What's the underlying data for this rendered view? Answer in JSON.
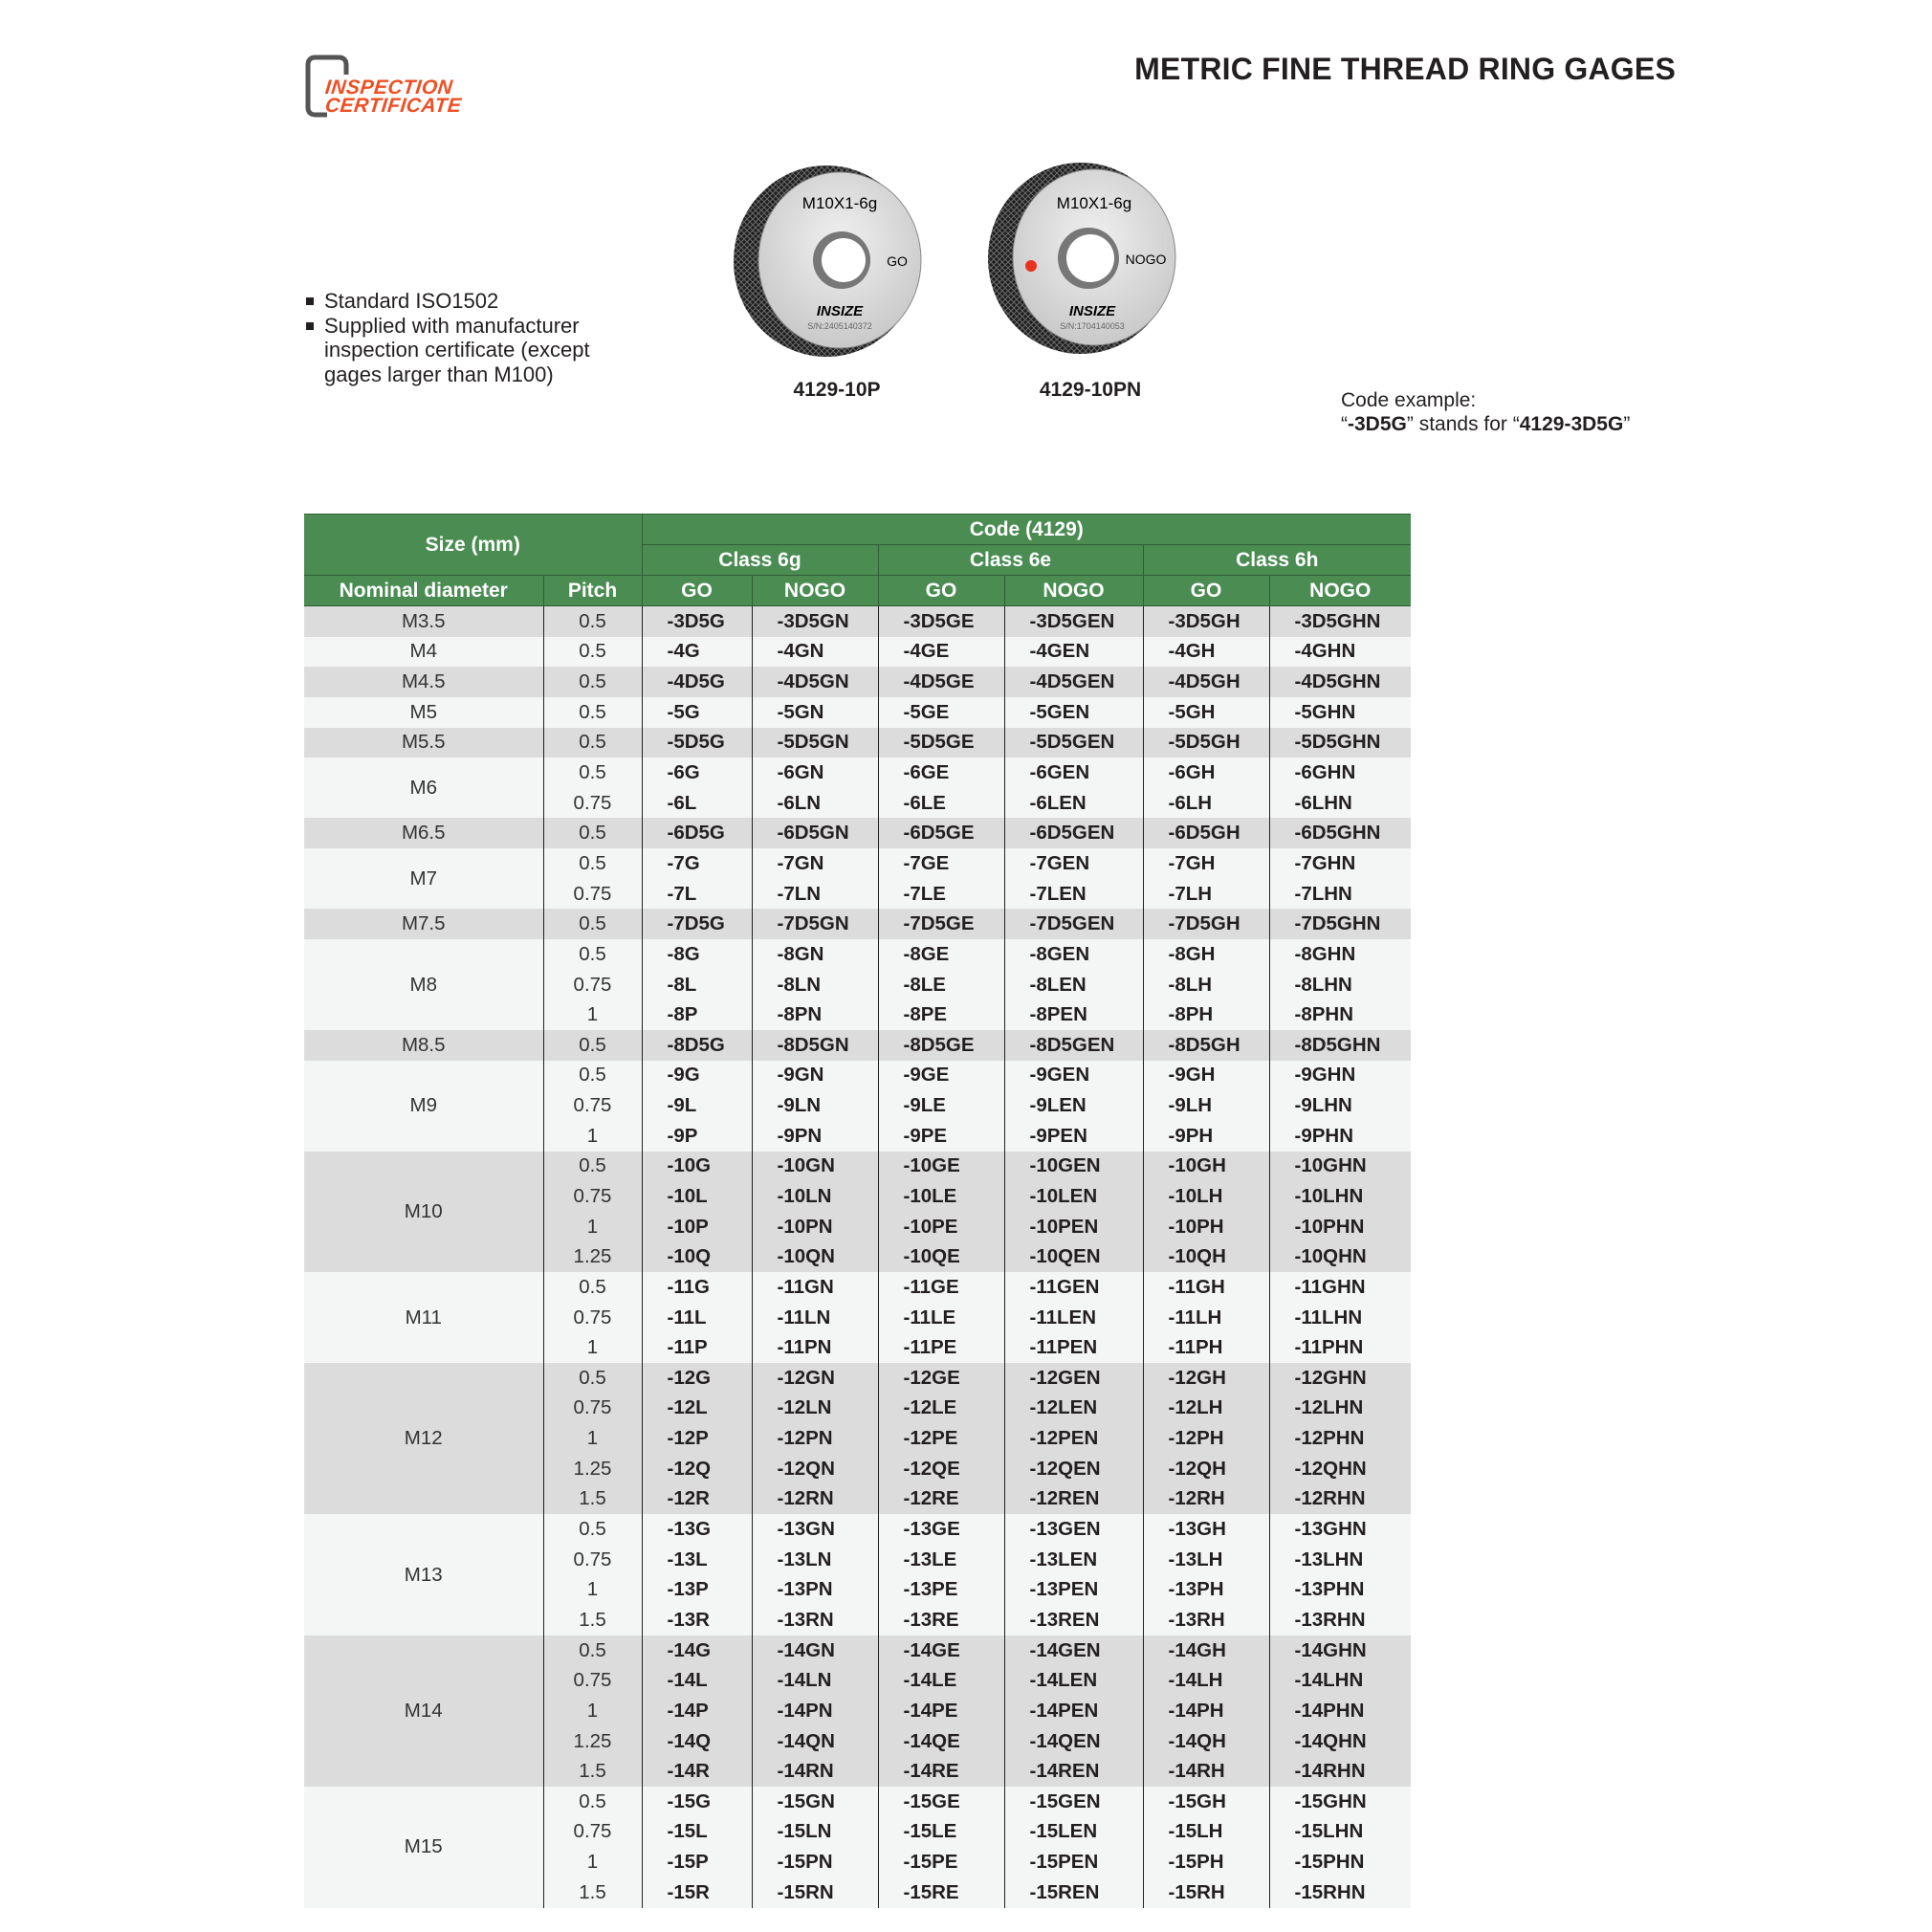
{
  "logo": {
    "line1": "INSPECTION",
    "line2": "CERTIFICATE",
    "color": "#f04e23"
  },
  "title": "METRIC FINE THREAD RING GAGES",
  "features": [
    "Standard ISO1502",
    "Supplied with manufacturer inspection certificate (except gages larger than M100)"
  ],
  "gages": [
    {
      "code": "4129-10P",
      "marking": "M10X1-6g",
      "type": "GO",
      "brand": "INSIZE",
      "serial": "S/N:2405140372",
      "red_dot": false
    },
    {
      "code": "4129-10PN",
      "marking": "M10X1-6g",
      "type": "NOGO",
      "brand": "INSIZE",
      "serial": "S/N:1704140053",
      "red_dot": true
    }
  ],
  "code_example": {
    "label": "Code example:",
    "short": "-3D5G",
    "middle": " stands for ",
    "full": "4129-3D5G"
  },
  "table": {
    "header_color": "#4a8c52",
    "size_header": "Size (mm)",
    "code_header": "Code (4129)",
    "classes": [
      "Class 6g",
      "Class 6e",
      "Class 6h"
    ],
    "columns": [
      "Nominal diameter",
      "Pitch",
      "GO",
      "NOGO",
      "GO",
      "NOGO",
      "GO",
      "NOGO"
    ],
    "groups": [
      {
        "size": "M3.5",
        "rows": [
          [
            "0.5",
            "-3D5G",
            "-3D5GN",
            "-3D5GE",
            "-3D5GEN",
            "-3D5GH",
            "-3D5GHN"
          ]
        ]
      },
      {
        "size": "M4",
        "rows": [
          [
            "0.5",
            "-4G",
            "-4GN",
            "-4GE",
            "-4GEN",
            "-4GH",
            "-4GHN"
          ]
        ]
      },
      {
        "size": "M4.5",
        "rows": [
          [
            "0.5",
            "-4D5G",
            "-4D5GN",
            "-4D5GE",
            "-4D5GEN",
            "-4D5GH",
            "-4D5GHN"
          ]
        ]
      },
      {
        "size": "M5",
        "rows": [
          [
            "0.5",
            "-5G",
            "-5GN",
            "-5GE",
            "-5GEN",
            "-5GH",
            "-5GHN"
          ]
        ]
      },
      {
        "size": "M5.5",
        "rows": [
          [
            "0.5",
            "-5D5G",
            "-5D5GN",
            "-5D5GE",
            "-5D5GEN",
            "-5D5GH",
            "-5D5GHN"
          ]
        ]
      },
      {
        "size": "M6",
        "rows": [
          [
            "0.5",
            "-6G",
            "-6GN",
            "-6GE",
            "-6GEN",
            "-6GH",
            "-6GHN"
          ],
          [
            "0.75",
            "-6L",
            "-6LN",
            "-6LE",
            "-6LEN",
            "-6LH",
            "-6LHN"
          ]
        ]
      },
      {
        "size": "M6.5",
        "rows": [
          [
            "0.5",
            "-6D5G",
            "-6D5GN",
            "-6D5GE",
            "-6D5GEN",
            "-6D5GH",
            "-6D5GHN"
          ]
        ]
      },
      {
        "size": "M7",
        "rows": [
          [
            "0.5",
            "-7G",
            "-7GN",
            "-7GE",
            "-7GEN",
            "-7GH",
            "-7GHN"
          ],
          [
            "0.75",
            "-7L",
            "-7LN",
            "-7LE",
            "-7LEN",
            "-7LH",
            "-7LHN"
          ]
        ]
      },
      {
        "size": "M7.5",
        "rows": [
          [
            "0.5",
            "-7D5G",
            "-7D5GN",
            "-7D5GE",
            "-7D5GEN",
            "-7D5GH",
            "-7D5GHN"
          ]
        ]
      },
      {
        "size": "M8",
        "rows": [
          [
            "0.5",
            "-8G",
            "-8GN",
            "-8GE",
            "-8GEN",
            "-8GH",
            "-8GHN"
          ],
          [
            "0.75",
            "-8L",
            "-8LN",
            "-8LE",
            "-8LEN",
            "-8LH",
            "-8LHN"
          ],
          [
            "1",
            "-8P",
            "-8PN",
            "-8PE",
            "-8PEN",
            "-8PH",
            "-8PHN"
          ]
        ]
      },
      {
        "size": "M8.5",
        "rows": [
          [
            "0.5",
            "-8D5G",
            "-8D5GN",
            "-8D5GE",
            "-8D5GEN",
            "-8D5GH",
            "-8D5GHN"
          ]
        ]
      },
      {
        "size": "M9",
        "rows": [
          [
            "0.5",
            "-9G",
            "-9GN",
            "-9GE",
            "-9GEN",
            "-9GH",
            "-9GHN"
          ],
          [
            "0.75",
            "-9L",
            "-9LN",
            "-9LE",
            "-9LEN",
            "-9LH",
            "-9LHN"
          ],
          [
            "1",
            "-9P",
            "-9PN",
            "-9PE",
            "-9PEN",
            "-9PH",
            "-9PHN"
          ]
        ]
      },
      {
        "size": "M10",
        "rows": [
          [
            "0.5",
            "-10G",
            "-10GN",
            "-10GE",
            "-10GEN",
            "-10GH",
            "-10GHN"
          ],
          [
            "0.75",
            "-10L",
            "-10LN",
            "-10LE",
            "-10LEN",
            "-10LH",
            "-10LHN"
          ],
          [
            "1",
            "-10P",
            "-10PN",
            "-10PE",
            "-10PEN",
            "-10PH",
            "-10PHN"
          ],
          [
            "1.25",
            "-10Q",
            "-10QN",
            "-10QE",
            "-10QEN",
            "-10QH",
            "-10QHN"
          ]
        ]
      },
      {
        "size": "M11",
        "rows": [
          [
            "0.5",
            "-11G",
            "-11GN",
            "-11GE",
            "-11GEN",
            "-11GH",
            "-11GHN"
          ],
          [
            "0.75",
            "-11L",
            "-11LN",
            "-11LE",
            "-11LEN",
            "-11LH",
            "-11LHN"
          ],
          [
            "1",
            "-11P",
            "-11PN",
            "-11PE",
            "-11PEN",
            "-11PH",
            "-11PHN"
          ]
        ]
      },
      {
        "size": "M12",
        "rows": [
          [
            "0.5",
            "-12G",
            "-12GN",
            "-12GE",
            "-12GEN",
            "-12GH",
            "-12GHN"
          ],
          [
            "0.75",
            "-12L",
            "-12LN",
            "-12LE",
            "-12LEN",
            "-12LH",
            "-12LHN"
          ],
          [
            "1",
            "-12P",
            "-12PN",
            "-12PE",
            "-12PEN",
            "-12PH",
            "-12PHN"
          ],
          [
            "1.25",
            "-12Q",
            "-12QN",
            "-12QE",
            "-12QEN",
            "-12QH",
            "-12QHN"
          ],
          [
            "1.5",
            "-12R",
            "-12RN",
            "-12RE",
            "-12REN",
            "-12RH",
            "-12RHN"
          ]
        ]
      },
      {
        "size": "M13",
        "rows": [
          [
            "0.5",
            "-13G",
            "-13GN",
            "-13GE",
            "-13GEN",
            "-13GH",
            "-13GHN"
          ],
          [
            "0.75",
            "-13L",
            "-13LN",
            "-13LE",
            "-13LEN",
            "-13LH",
            "-13LHN"
          ],
          [
            "1",
            "-13P",
            "-13PN",
            "-13PE",
            "-13PEN",
            "-13PH",
            "-13PHN"
          ],
          [
            "1.5",
            "-13R",
            "-13RN",
            "-13RE",
            "-13REN",
            "-13RH",
            "-13RHN"
          ]
        ]
      },
      {
        "size": "M14",
        "rows": [
          [
            "0.5",
            "-14G",
            "-14GN",
            "-14GE",
            "-14GEN",
            "-14GH",
            "-14GHN"
          ],
          [
            "0.75",
            "-14L",
            "-14LN",
            "-14LE",
            "-14LEN",
            "-14LH",
            "-14LHN"
          ],
          [
            "1",
            "-14P",
            "-14PN",
            "-14PE",
            "-14PEN",
            "-14PH",
            "-14PHN"
          ],
          [
            "1.25",
            "-14Q",
            "-14QN",
            "-14QE",
            "-14QEN",
            "-14QH",
            "-14QHN"
          ],
          [
            "1.5",
            "-14R",
            "-14RN",
            "-14RE",
            "-14REN",
            "-14RH",
            "-14RHN"
          ]
        ]
      },
      {
        "size": "M15",
        "rows": [
          [
            "0.5",
            "-15G",
            "-15GN",
            "-15GE",
            "-15GEN",
            "-15GH",
            "-15GHN"
          ],
          [
            "0.75",
            "-15L",
            "-15LN",
            "-15LE",
            "-15LEN",
            "-15LH",
            "-15LHN"
          ],
          [
            "1",
            "-15P",
            "-15PN",
            "-15PE",
            "-15PEN",
            "-15PH",
            "-15PHN"
          ],
          [
            "1.5",
            "-15R",
            "-15RN",
            "-15RE",
            "-15REN",
            "-15RH",
            "-15RHN"
          ]
        ]
      }
    ]
  }
}
